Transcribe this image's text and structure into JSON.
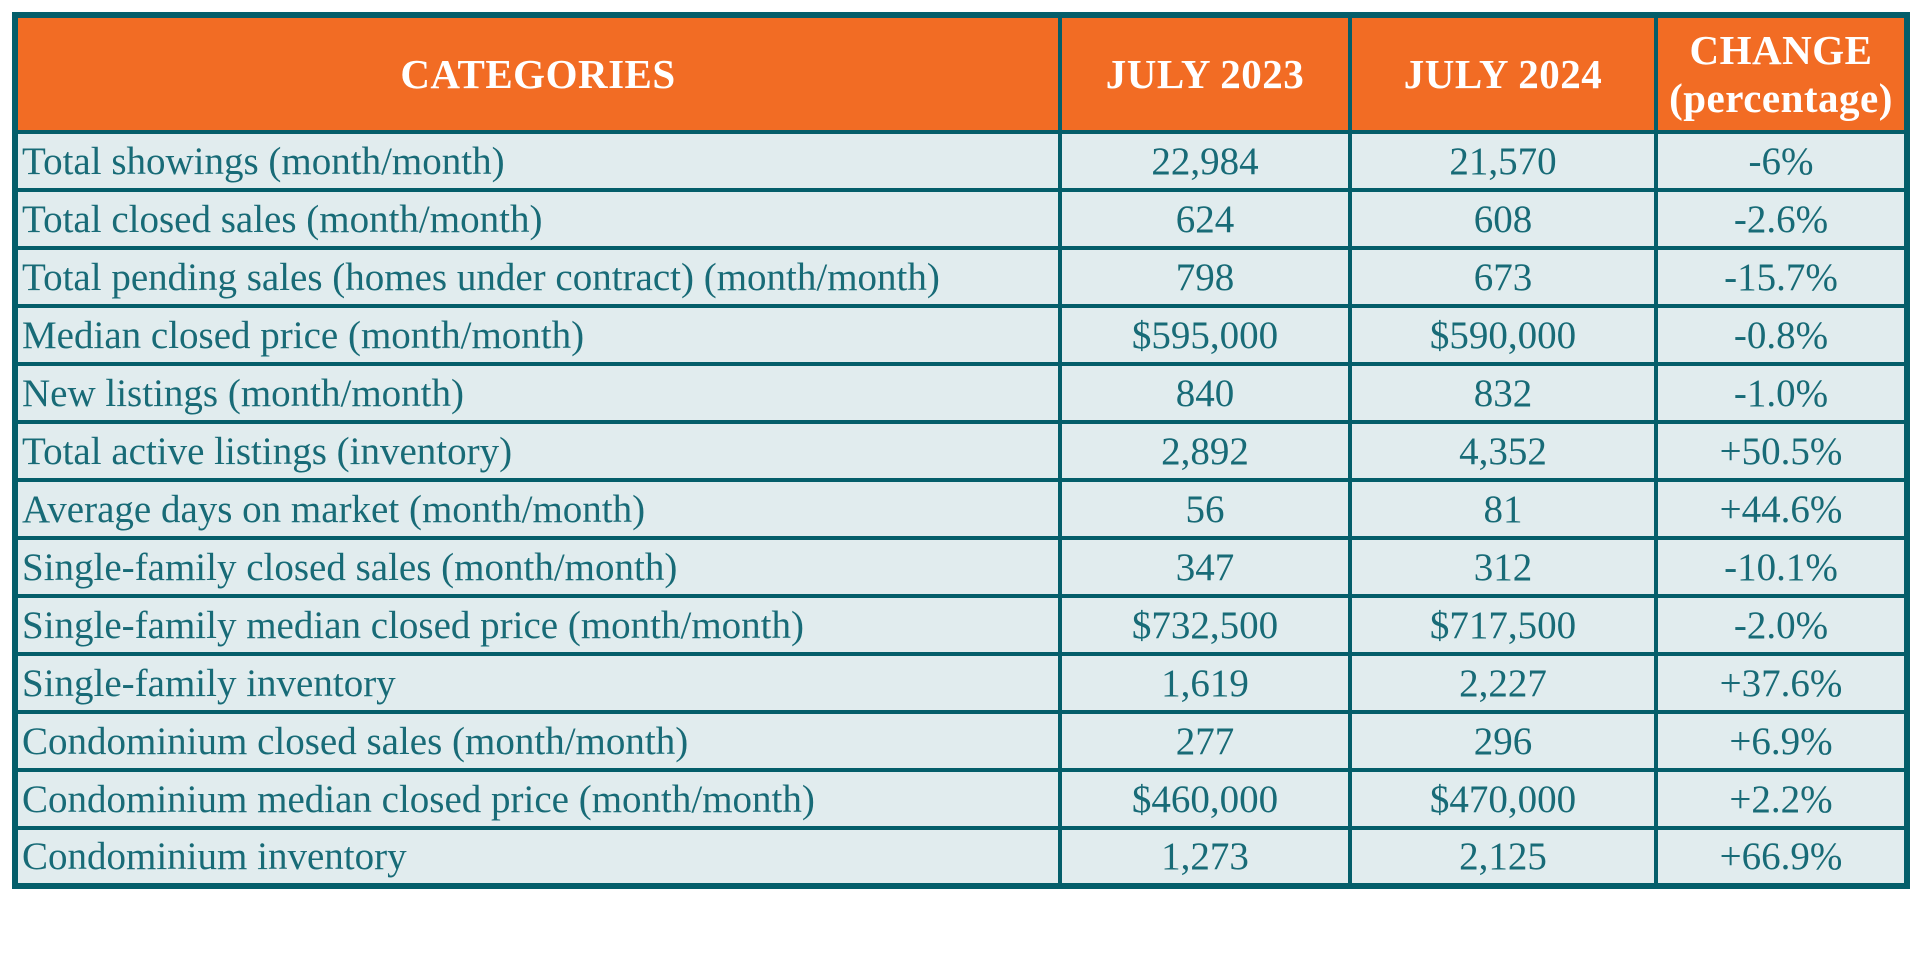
{
  "header": {
    "categories": "CATEGORIES",
    "july_2023": "JULY 2023",
    "july_2024": "JULY 2024",
    "change_line1": "CHANGE",
    "change_line2": "(percentage)"
  },
  "chart_data": {
    "type": "table",
    "columns": [
      "CATEGORIES",
      "JULY 2023",
      "JULY 2024",
      "CHANGE (percentage)"
    ],
    "rows": [
      [
        "Total showings (month/month)",
        "22,984",
        "21,570",
        "-6%"
      ],
      [
        "Total closed sales (month/month)",
        "624",
        "608",
        "-2.6%"
      ],
      [
        "Total pending sales (homes under contract) (month/month)",
        "798",
        "673",
        "-15.7%"
      ],
      [
        "Median closed price (month/month)",
        "$595,000",
        "$590,000",
        "-0.8%"
      ],
      [
        "New listings (month/month)",
        "840",
        "832",
        "-1.0%"
      ],
      [
        "Total active listings (inventory)",
        "2,892",
        "4,352",
        "+50.5%"
      ],
      [
        "Average days on market (month/month)",
        "56",
        "81",
        "+44.6%"
      ],
      [
        "Single-family closed sales (month/month)",
        "347",
        "312",
        "-10.1%"
      ],
      [
        "Single-family median closed price (month/month)",
        "$732,500",
        "$717,500",
        "-2.0%"
      ],
      [
        "Single-family inventory",
        "1,619",
        "2,227",
        "+37.6%"
      ],
      [
        "Condominium closed sales (month/month)",
        "277",
        "296",
        "+6.9%"
      ],
      [
        "Condominium median closed price (month/month)",
        "$460,000",
        "$470,000",
        "+2.2%"
      ],
      [
        "Condominium inventory",
        "1,273",
        "2,125",
        "+66.9%"
      ]
    ]
  },
  "colors": {
    "header_bg": "#F26C24",
    "header_text": "#FFFFFF",
    "border": "#045E6A",
    "text": "#186B77",
    "row_bg": "#E1ECEE",
    "page_bg": "#FFFFFF"
  }
}
